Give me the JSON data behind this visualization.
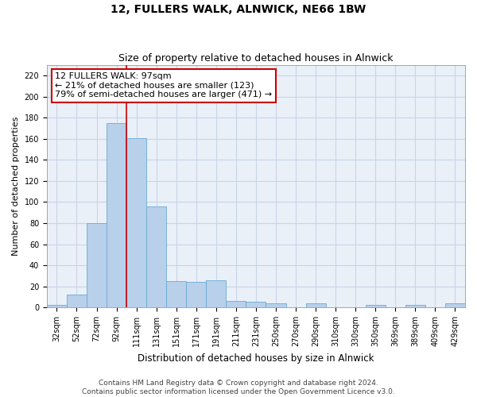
{
  "title": "12, FULLERS WALK, ALNWICK, NE66 1BW",
  "subtitle": "Size of property relative to detached houses in Alnwick",
  "xlabel": "Distribution of detached houses by size in Alnwick",
  "ylabel": "Number of detached properties",
  "bar_values": [
    2,
    12,
    80,
    175,
    161,
    96,
    25,
    24,
    26,
    6,
    5,
    4,
    0,
    4,
    0,
    0,
    2,
    0,
    2,
    0,
    4
  ],
  "bin_labels": [
    "32sqm",
    "52sqm",
    "72sqm",
    "92sqm",
    "111sqm",
    "131sqm",
    "151sqm",
    "171sqm",
    "191sqm",
    "211sqm",
    "231sqm",
    "250sqm",
    "270sqm",
    "290sqm",
    "310sqm",
    "330sqm",
    "350sqm",
    "369sqm",
    "389sqm",
    "409sqm",
    "429sqm"
  ],
  "bar_color": "#b8d0ea",
  "bar_edgecolor": "#6aaad4",
  "grid_color": "#c8d4e8",
  "background_color": "#eaf0f8",
  "vline_x": 3.5,
  "vline_color": "#cc0000",
  "annotation_text": "12 FULLERS WALK: 97sqm\n← 21% of detached houses are smaller (123)\n79% of semi-detached houses are larger (471) →",
  "annotation_box_edgecolor": "#cc0000",
  "annotation_box_facecolor": "white",
  "ylim": [
    0,
    230
  ],
  "yticks": [
    0,
    20,
    40,
    60,
    80,
    100,
    120,
    140,
    160,
    180,
    200,
    220
  ],
  "footer_text": "Contains HM Land Registry data © Crown copyright and database right 2024.\nContains public sector information licensed under the Open Government Licence v3.0.",
  "title_fontsize": 10,
  "subtitle_fontsize": 9,
  "xlabel_fontsize": 8.5,
  "ylabel_fontsize": 8,
  "tick_fontsize": 7,
  "annotation_fontsize": 8,
  "footer_fontsize": 6.5
}
